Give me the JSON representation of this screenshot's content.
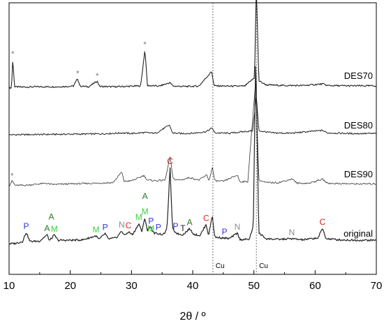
{
  "chart_data": {
    "type": "line",
    "xlabel": "2θ / º",
    "ylabel": "",
    "xlim": [
      10,
      70
    ],
    "x_ticks": [
      "10",
      "20",
      "30",
      "40",
      "50",
      "60",
      "70"
    ],
    "y_axis_shown": false,
    "grid": false,
    "legend": "none (series labelled inline at right)",
    "series": [
      {
        "name": "DES70",
        "points": [
          [
            10,
            0.2
          ],
          [
            10.4,
            0.3
          ],
          [
            10.6,
            9.5
          ],
          [
            10.9,
            0.6
          ],
          [
            12,
            0.5
          ],
          [
            15,
            0.6
          ],
          [
            18,
            0.6
          ],
          [
            20.5,
            0.8
          ],
          [
            21.2,
            3.2
          ],
          [
            21.6,
            0.8
          ],
          [
            23,
            0.6
          ],
          [
            24.4,
            2.4
          ],
          [
            24.8,
            0.7
          ],
          [
            27,
            0.6
          ],
          [
            29,
            0.7
          ],
          [
            31.5,
            0.9
          ],
          [
            32.2,
            12.5
          ],
          [
            32.6,
            1
          ],
          [
            34.5,
            0.8
          ],
          [
            36.3,
            1.9
          ],
          [
            36.8,
            0.8
          ],
          [
            39,
            0.7
          ],
          [
            41,
            0.8
          ],
          [
            43.1,
            5.5
          ],
          [
            43.5,
            0.9
          ],
          [
            46,
            0.8
          ],
          [
            48.5,
            0.8
          ],
          [
            50.1,
            3.5
          ],
          [
            50.4,
            33
          ],
          [
            50.8,
            2.5
          ],
          [
            52,
            1.2
          ],
          [
            55,
            1
          ],
          [
            58,
            1
          ],
          [
            61.3,
            1.5
          ],
          [
            62,
            1
          ],
          [
            65,
            0.9
          ],
          [
            70,
            0.9
          ]
        ]
      },
      {
        "name": "DES80",
        "points": [
          [
            10,
            0.2
          ],
          [
            15,
            0.3
          ],
          [
            20,
            0.4
          ],
          [
            25,
            0.5
          ],
          [
            28.5,
            0.8
          ],
          [
            30,
            0.6
          ],
          [
            32,
            0.9
          ],
          [
            34,
            0.7
          ],
          [
            36.2,
            3.3
          ],
          [
            36.7,
            0.8
          ],
          [
            38,
            0.6
          ],
          [
            40,
            0.7
          ],
          [
            42.2,
            1.2
          ],
          [
            43.2,
            2.4
          ],
          [
            43.6,
            0.8
          ],
          [
            46,
            0.7
          ],
          [
            49.8,
            1.5
          ],
          [
            50.4,
            12.5
          ],
          [
            50.8,
            1.5
          ],
          [
            53,
            0.8
          ],
          [
            56,
            0.7
          ],
          [
            61.2,
            1.6
          ],
          [
            62,
            0.8
          ],
          [
            66,
            0.6
          ],
          [
            70,
            0.6
          ]
        ]
      },
      {
        "name": "DES90",
        "points": [
          [
            10,
            0.1
          ],
          [
            10.5,
            1.8
          ],
          [
            11,
            0.3
          ],
          [
            13,
            0.4
          ],
          [
            16,
            1
          ],
          [
            17,
            0.6
          ],
          [
            20,
            0.8
          ],
          [
            24,
            1
          ],
          [
            27,
            1.2
          ],
          [
            28.4,
            4.6
          ],
          [
            28.8,
            1.6
          ],
          [
            30,
            1.8
          ],
          [
            31.3,
            2.8
          ],
          [
            32,
            3.5
          ],
          [
            32.6,
            2
          ],
          [
            34,
            1.8
          ],
          [
            35.5,
            2
          ],
          [
            36.3,
            9.5
          ],
          [
            36.8,
            2.3
          ],
          [
            38,
            2
          ],
          [
            39.5,
            2.8
          ],
          [
            41,
            2
          ],
          [
            42.3,
            3.6
          ],
          [
            42.7,
            1.8
          ],
          [
            43.2,
            6.2
          ],
          [
            43.6,
            1.8
          ],
          [
            45,
            1.6
          ],
          [
            47.3,
            3.6
          ],
          [
            47.7,
            1.5
          ],
          [
            49,
            1.5
          ],
          [
            50.3,
            34
          ],
          [
            50.8,
            2
          ],
          [
            52,
            1.2
          ],
          [
            54,
            1.2
          ],
          [
            56.3,
            2.4
          ],
          [
            57,
            1
          ],
          [
            59,
            1
          ],
          [
            61.2,
            2.3
          ],
          [
            62,
            1
          ],
          [
            66,
            0.8
          ],
          [
            70,
            0.8
          ]
        ]
      },
      {
        "name": "original",
        "points": [
          [
            10,
            0.3
          ],
          [
            11,
            0.4
          ],
          [
            12.2,
            0.9
          ],
          [
            12.8,
            3.2
          ],
          [
            13.4,
            0.9
          ],
          [
            15,
            1
          ],
          [
            16.2,
            2.6
          ],
          [
            16.6,
            1.1
          ],
          [
            17.4,
            2.5
          ],
          [
            18,
            1.2
          ],
          [
            20,
            1.2
          ],
          [
            22,
            1.3
          ],
          [
            24.2,
            2.3
          ],
          [
            24.7,
            1.4
          ],
          [
            25.7,
            2.9
          ],
          [
            26.2,
            1.5
          ],
          [
            27.5,
            1.8
          ],
          [
            28.4,
            3.5
          ],
          [
            28.9,
            2.4
          ],
          [
            29.5,
            3.3
          ],
          [
            30.2,
            2.6
          ],
          [
            31.2,
            5.4
          ],
          [
            31.7,
            3.4
          ],
          [
            32.2,
            6.8
          ],
          [
            32.6,
            3.6
          ],
          [
            33.1,
            4.8
          ],
          [
            33.6,
            3
          ],
          [
            34.4,
            2.9
          ],
          [
            35.2,
            2.6
          ],
          [
            35.8,
            4
          ],
          [
            36.3,
            19.5
          ],
          [
            36.7,
            4
          ],
          [
            37.2,
            3.2
          ],
          [
            37.6,
            2.8
          ],
          [
            38.4,
            2.6
          ],
          [
            39.5,
            4.1
          ],
          [
            40.2,
            2.7
          ],
          [
            41.2,
            2.4
          ],
          [
            42.2,
            5.2
          ],
          [
            42.6,
            2.4
          ],
          [
            43.2,
            7.5
          ],
          [
            43.6,
            2
          ],
          [
            44.8,
            1.8
          ],
          [
            46,
            1.6
          ],
          [
            47.3,
            3
          ],
          [
            47.7,
            1.4
          ],
          [
            49.2,
            1.4
          ],
          [
            49.9,
            4.5
          ],
          [
            50.3,
            48
          ],
          [
            50.8,
            3
          ],
          [
            52,
            1.6
          ],
          [
            54,
            1.4
          ],
          [
            56,
            1.6
          ],
          [
            58,
            1.3
          ],
          [
            60.5,
            1.8
          ],
          [
            61.2,
            4.2
          ],
          [
            61.8,
            1.6
          ],
          [
            64,
            1.3
          ],
          [
            67,
            1.2
          ],
          [
            70,
            1.2
          ]
        ]
      }
    ],
    "peak_annotations": [
      {
        "series": "DES70",
        "x": 10.6,
        "label": "*",
        "color": "#7f7f7f"
      },
      {
        "series": "DES70",
        "x": 21.2,
        "label": "*",
        "color": "#7f7f7f"
      },
      {
        "series": "DES70",
        "x": 24.4,
        "label": "*",
        "color": "#7f7f7f"
      },
      {
        "series": "DES70",
        "x": 32.2,
        "label": "*",
        "color": "#7f7f7f"
      },
      {
        "series": "DES90",
        "x": 10.5,
        "label": "*",
        "color": "#7f7f7f"
      },
      {
        "series": "original",
        "x": 12.8,
        "label": "P",
        "color": "#2f2fe8"
      },
      {
        "series": "original",
        "x": 16.2,
        "label": "A",
        "color": "#1f7a1f"
      },
      {
        "series": "original",
        "x": 16.9,
        "label": "A",
        "color": "#1f7a1f",
        "tier": 2
      },
      {
        "series": "original",
        "x": 17.4,
        "label": "M",
        "color": "#3ad43a"
      },
      {
        "series": "original",
        "x": 24.2,
        "label": "M",
        "color": "#3ad43a"
      },
      {
        "series": "original",
        "x": 25.7,
        "label": "P",
        "color": "#2f2fe8"
      },
      {
        "series": "original",
        "x": 28.4,
        "label": "N",
        "color": "#8c8c8c"
      },
      {
        "series": "original",
        "x": 29.5,
        "label": "C",
        "color": "#e02020"
      },
      {
        "series": "original",
        "x": 31.2,
        "label": "M",
        "color": "#3ad43a"
      },
      {
        "series": "original",
        "x": 32.2,
        "label": "A",
        "color": "#1f7a1f",
        "tier": 2
      },
      {
        "series": "original",
        "x": 32.2,
        "label": "M",
        "color": "#3ad43a"
      },
      {
        "series": "original",
        "x": 33.2,
        "label": "P",
        "color": "#2f2fe8"
      },
      {
        "series": "original",
        "x": 33.2,
        "label": "M",
        "color": "#3ad43a",
        "tier": -1
      },
      {
        "series": "original",
        "x": 34.4,
        "label": "P",
        "color": "#2f2fe8"
      },
      {
        "series": "original",
        "x": 36.3,
        "label": "C",
        "color": "#e02020"
      },
      {
        "series": "original",
        "x": 37.2,
        "label": "P",
        "color": "#2f2fe8"
      },
      {
        "series": "original",
        "x": 38.4,
        "label": "T",
        "color": "#222222"
      },
      {
        "series": "original",
        "x": 39.5,
        "label": "A",
        "color": "#1f7a1f"
      },
      {
        "series": "original",
        "x": 42.2,
        "label": "C",
        "color": "#e02020"
      },
      {
        "series": "original",
        "x": 45.2,
        "label": "P",
        "color": "#2f2fe8"
      },
      {
        "series": "original",
        "x": 47.3,
        "label": "N",
        "color": "#8c8c8c"
      },
      {
        "series": "original",
        "x": 56.2,
        "label": "N",
        "color": "#8c8c8c"
      },
      {
        "series": "original",
        "x": 61.2,
        "label": "C",
        "color": "#e02020"
      }
    ],
    "reference_lines": [
      {
        "x": 43.3,
        "label": "Cu"
      },
      {
        "x": 50.4,
        "label": "Cu"
      }
    ]
  }
}
